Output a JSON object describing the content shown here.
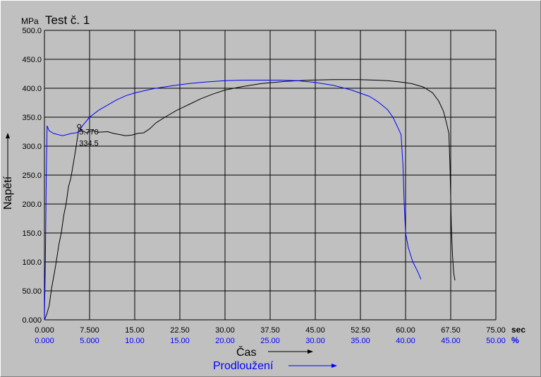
{
  "chart_data": {
    "type": "line",
    "title": "Test č.  1",
    "y_unit": "MPa",
    "ylabel": "Napětí",
    "xlabel_primary": "Čas",
    "xlabel_secondary": "Prodloužení",
    "x_unit_primary": "sec",
    "x_unit_secondary": "%",
    "ylim": [
      0,
      500
    ],
    "xlim_primary": [
      0,
      75
    ],
    "xlim_secondary": [
      0,
      50
    ],
    "y_ticks": [
      "0.000",
      "50.00",
      "100.0",
      "150.0",
      "200.0",
      "250.0",
      "300.0",
      "350.0",
      "400.0",
      "450.0",
      "500.0"
    ],
    "x_ticks_primary": [
      "0.000",
      "7.500",
      "15.00",
      "22.50",
      "30.00",
      "37.50",
      "45.00",
      "52.50",
      "60.00",
      "67.50",
      "75.00"
    ],
    "x_ticks_secondary": [
      "0.000",
      "5.000",
      "10.00",
      "15.00",
      "20.00",
      "25.00",
      "30.00",
      "35.00",
      "40.00",
      "45.00",
      "50.00"
    ],
    "grid": true,
    "annotation": {
      "x_label": "5.770",
      "y_label": "334.5",
      "x": 5.77,
      "y": 334.5
    },
    "series": [
      {
        "axis": "primary",
        "color": "#000000",
        "points": [
          [
            0,
            0
          ],
          [
            0.4,
            10
          ],
          [
            0.8,
            25
          ],
          [
            1.2,
            55
          ],
          [
            1.8,
            90
          ],
          [
            2.4,
            130
          ],
          [
            2.8,
            150
          ],
          [
            3.2,
            180
          ],
          [
            3.6,
            200
          ],
          [
            4.0,
            230
          ],
          [
            4.4,
            245
          ],
          [
            4.8,
            270
          ],
          [
            5.2,
            295
          ],
          [
            5.5,
            315
          ],
          [
            5.77,
            334.5
          ],
          [
            6.0,
            328
          ],
          [
            7.0,
            323
          ],
          [
            8.0,
            327
          ],
          [
            9.0,
            324
          ],
          [
            10.5,
            325
          ],
          [
            11.5,
            322
          ],
          [
            12.5,
            320
          ],
          [
            13.5,
            318
          ],
          [
            14.5,
            319
          ],
          [
            15.5,
            322
          ],
          [
            16.5,
            323
          ],
          [
            17.5,
            330
          ],
          [
            18.5,
            340
          ],
          [
            20,
            350
          ],
          [
            22,
            362
          ],
          [
            24,
            372
          ],
          [
            26,
            382
          ],
          [
            28,
            390
          ],
          [
            30,
            397
          ],
          [
            33,
            403
          ],
          [
            36,
            408
          ],
          [
            40,
            412
          ],
          [
            44,
            414
          ],
          [
            48,
            415
          ],
          [
            52,
            415
          ],
          [
            55,
            414
          ],
          [
            57,
            413
          ],
          [
            59,
            411
          ],
          [
            61,
            408
          ],
          [
            63,
            402
          ],
          [
            64.5,
            392
          ],
          [
            65.5,
            378
          ],
          [
            66.3,
            360
          ],
          [
            66.8,
            340
          ],
          [
            67.2,
            322
          ],
          [
            67.4,
            260
          ],
          [
            67.6,
            160
          ],
          [
            67.8,
            110
          ],
          [
            68.0,
            80
          ],
          [
            68.2,
            68
          ]
        ]
      },
      {
        "axis": "secondary",
        "color": "#0000ff",
        "points": [
          [
            0,
            0
          ],
          [
            0.1,
            100
          ],
          [
            0.2,
            250
          ],
          [
            0.3,
            335
          ],
          [
            0.5,
            327
          ],
          [
            1.0,
            322
          ],
          [
            1.5,
            320
          ],
          [
            2.0,
            318
          ],
          [
            2.5,
            320
          ],
          [
            3.0,
            322
          ],
          [
            3.5,
            323
          ],
          [
            3.85,
            325
          ],
          [
            4.2,
            335
          ],
          [
            5.0,
            350
          ],
          [
            6.0,
            362
          ],
          [
            7.0,
            371
          ],
          [
            8.0,
            380
          ],
          [
            9.0,
            387
          ],
          [
            10,
            392
          ],
          [
            12,
            399
          ],
          [
            14,
            404
          ],
          [
            16,
            408
          ],
          [
            18,
            411
          ],
          [
            20,
            413
          ],
          [
            22,
            414
          ],
          [
            24,
            414
          ],
          [
            26,
            414
          ],
          [
            28,
            413
          ],
          [
            30,
            410
          ],
          [
            32,
            405
          ],
          [
            34,
            397
          ],
          [
            36,
            386
          ],
          [
            37,
            376
          ],
          [
            38,
            363
          ],
          [
            38.6,
            350
          ],
          [
            39.2,
            330
          ],
          [
            39.5,
            320
          ],
          [
            39.7,
            270
          ],
          [
            39.85,
            200
          ],
          [
            40.0,
            150
          ],
          [
            40.3,
            125
          ],
          [
            40.8,
            100
          ],
          [
            41.3,
            85
          ],
          [
            41.7,
            70
          ]
        ]
      }
    ]
  }
}
